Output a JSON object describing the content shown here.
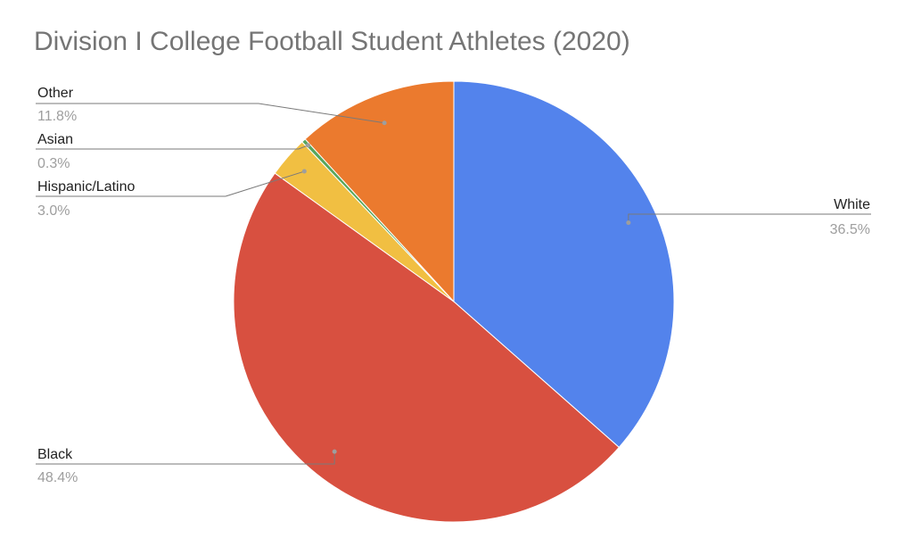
{
  "chart_data": {
    "type": "pie",
    "title": "Division I College Football Student Athletes (2020)",
    "slices": [
      {
        "label": "White",
        "value": 36.5,
        "percent_label": "36.5%",
        "color": "#5383EC"
      },
      {
        "label": "Black",
        "value": 48.4,
        "percent_label": "48.4%",
        "color": "#D85040"
      },
      {
        "label": "Hispanic/Latino",
        "value": 3.0,
        "percent_label": "3.0%",
        "color": "#F1BF42"
      },
      {
        "label": "Asian",
        "value": 0.3,
        "percent_label": "0.3%",
        "color": "#58A65C"
      },
      {
        "label": "Other",
        "value": 11.8,
        "percent_label": "11.8%",
        "color": "#EB7A2E"
      }
    ],
    "start_angle_deg": 0,
    "direction": "clockwise",
    "legend": "none",
    "label_style": "callout lines with name and percentage"
  }
}
